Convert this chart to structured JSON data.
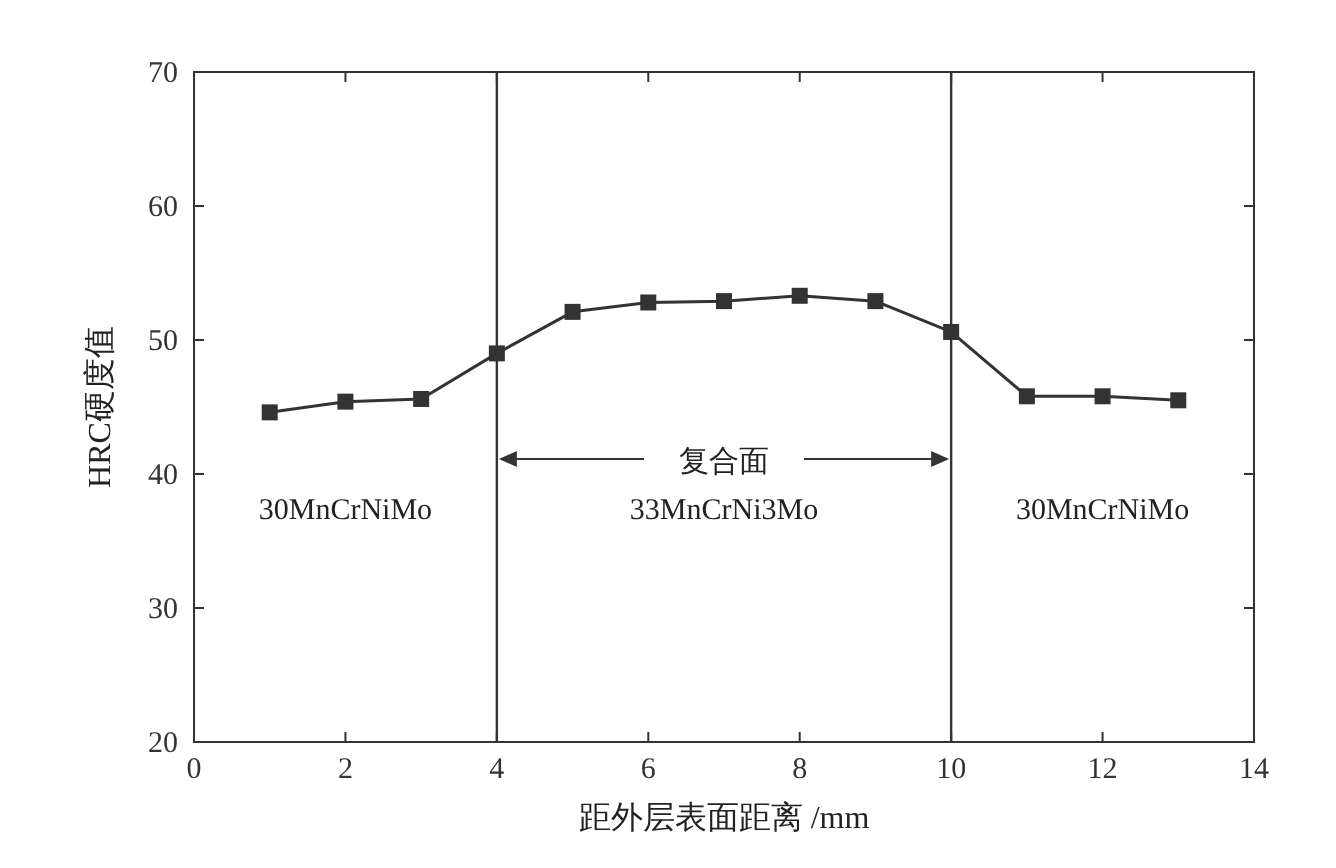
{
  "chart_data": {
    "type": "line",
    "xlabel": "距外层表面距离 /mm",
    "ylabel": "HRC硬度值",
    "x": [
      1,
      2,
      3,
      4,
      5,
      6,
      7,
      8,
      9,
      10,
      11,
      12,
      13
    ],
    "series": [
      {
        "color": "#333333",
        "values": [
          44.6,
          45.4,
          45.6,
          49,
          52.1,
          52.8,
          52.9,
          53.3,
          52.9,
          50.6,
          45.8,
          45.8,
          45.5
        ]
      }
    ],
    "xlim": [
      0,
      14
    ],
    "xticks": [
      0,
      2,
      4,
      6,
      8,
      10,
      12,
      14
    ],
    "ylim": [
      20,
      70
    ],
    "yticks": [
      20,
      30,
      40,
      50,
      60,
      70
    ],
    "ref_lines": [
      {
        "axis": "x",
        "value": 4,
        "color": "#333333"
      },
      {
        "axis": "x",
        "value": 10,
        "color": "#333333"
      }
    ],
    "annotations": [
      "复合面",
      "30MnCrNiMo",
      "33MnCrNi3Mo",
      "30MnCrNiMo"
    ],
    "marker": "square",
    "line_style": "solid",
    "grid": false
  }
}
